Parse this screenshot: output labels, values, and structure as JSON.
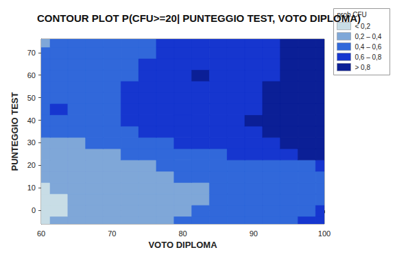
{
  "chart_data": {
    "type": "contour",
    "title": "CONTOUR PLOT P(CFU>=20| PUNTEGGIO TEST, VOTO DIPLOMA)",
    "x_label": "VOTO DIPLOMA",
    "y_label": "PUNTEGGIO TEST",
    "xlim": [
      60,
      100
    ],
    "xticks": [
      60,
      70,
      80,
      90,
      100
    ],
    "ylim": [
      -6,
      76
    ],
    "yticks": [
      0,
      10,
      20,
      30,
      40,
      50,
      60,
      70
    ],
    "grid": false,
    "legend": "right",
    "legend_title": "prob.CFU",
    "color_bins": [
      {
        "label": "< 0,2",
        "max": 0.2,
        "color": "#c8dde6"
      },
      {
        "label": "0,2 – 0,4",
        "min": 0.2,
        "max": 0.4,
        "color": "#7fa7d8"
      },
      {
        "label": "0,4 – 0,6",
        "min": 0.4,
        "max": 0.6,
        "color": "#3168da"
      },
      {
        "label": "0,6 – 0,8",
        "min": 0.6,
        "max": 0.8,
        "color": "#1636cf"
      },
      {
        "label": "> 0,8",
        "min": 0.8,
        "color": "#0b1f96"
      }
    ],
    "x": [
      60,
      62.5,
      65,
      67.5,
      70,
      72.5,
      75,
      77.5,
      80,
      82.5,
      85,
      87.5,
      90,
      92.5,
      95,
      97.5,
      100
    ],
    "y": [
      -5,
      0,
      5,
      10,
      15,
      20,
      25,
      30,
      35,
      40,
      45,
      50,
      55,
      60,
      65,
      70,
      75
    ],
    "z": [
      [
        0.18,
        0.22,
        0.26,
        0.29,
        0.32,
        0.34,
        0.36,
        0.39,
        0.42,
        0.46,
        0.5,
        0.53,
        0.55,
        0.57,
        0.59,
        0.62,
        0.64
      ],
      [
        0.16,
        0.19,
        0.23,
        0.26,
        0.29,
        0.31,
        0.33,
        0.36,
        0.39,
        0.43,
        0.47,
        0.5,
        0.53,
        0.55,
        0.57,
        0.59,
        0.61
      ],
      [
        0.15,
        0.18,
        0.22,
        0.25,
        0.28,
        0.31,
        0.33,
        0.35,
        0.37,
        0.39,
        0.42,
        0.46,
        0.49,
        0.52,
        0.54,
        0.56,
        0.58
      ],
      [
        0.19,
        0.21,
        0.24,
        0.27,
        0.29,
        0.32,
        0.34,
        0.36,
        0.38,
        0.39,
        0.43,
        0.47,
        0.5,
        0.53,
        0.55,
        0.57,
        0.59
      ],
      [
        0.22,
        0.24,
        0.26,
        0.28,
        0.31,
        0.33,
        0.35,
        0.37,
        0.4,
        0.42,
        0.45,
        0.48,
        0.51,
        0.54,
        0.56,
        0.58,
        0.59
      ],
      [
        0.25,
        0.27,
        0.29,
        0.31,
        0.33,
        0.36,
        0.39,
        0.42,
        0.44,
        0.47,
        0.5,
        0.52,
        0.55,
        0.57,
        0.58,
        0.59,
        0.61
      ],
      [
        0.29,
        0.31,
        0.33,
        0.36,
        0.39,
        0.42,
        0.45,
        0.49,
        0.53,
        0.56,
        0.59,
        0.62,
        0.66,
        0.71,
        0.76,
        0.81,
        0.83
      ],
      [
        0.33,
        0.36,
        0.39,
        0.42,
        0.45,
        0.49,
        0.53,
        0.57,
        0.61,
        0.64,
        0.67,
        0.7,
        0.74,
        0.78,
        0.82,
        0.85,
        0.87
      ],
      [
        0.42,
        0.44,
        0.46,
        0.49,
        0.53,
        0.58,
        0.61,
        0.64,
        0.67,
        0.7,
        0.73,
        0.76,
        0.79,
        0.82,
        0.85,
        0.87,
        0.89
      ],
      [
        0.44,
        0.47,
        0.5,
        0.54,
        0.58,
        0.61,
        0.64,
        0.67,
        0.7,
        0.72,
        0.75,
        0.78,
        0.8,
        0.83,
        0.86,
        0.88,
        0.9
      ],
      [
        0.45,
        0.61,
        0.52,
        0.55,
        0.58,
        0.62,
        0.65,
        0.68,
        0.71,
        0.73,
        0.75,
        0.77,
        0.79,
        0.82,
        0.85,
        0.88,
        0.9
      ],
      [
        0.44,
        0.47,
        0.5,
        0.53,
        0.57,
        0.61,
        0.64,
        0.67,
        0.71,
        0.74,
        0.75,
        0.77,
        0.79,
        0.82,
        0.85,
        0.88,
        0.9
      ],
      [
        0.43,
        0.46,
        0.49,
        0.52,
        0.56,
        0.6,
        0.63,
        0.67,
        0.72,
        0.77,
        0.76,
        0.77,
        0.79,
        0.81,
        0.84,
        0.87,
        0.9
      ],
      [
        0.42,
        0.45,
        0.48,
        0.51,
        0.54,
        0.57,
        0.61,
        0.66,
        0.74,
        0.81,
        0.76,
        0.76,
        0.78,
        0.79,
        0.82,
        0.86,
        0.89
      ],
      [
        0.41,
        0.44,
        0.47,
        0.5,
        0.53,
        0.57,
        0.61,
        0.65,
        0.69,
        0.72,
        0.74,
        0.76,
        0.77,
        0.79,
        0.82,
        0.85,
        0.88
      ],
      [
        0.4,
        0.43,
        0.46,
        0.49,
        0.52,
        0.55,
        0.58,
        0.62,
        0.66,
        0.7,
        0.73,
        0.75,
        0.77,
        0.79,
        0.81,
        0.84,
        0.87
      ],
      [
        0.39,
        0.42,
        0.45,
        0.48,
        0.51,
        0.54,
        0.57,
        0.61,
        0.65,
        0.69,
        0.72,
        0.74,
        0.76,
        0.78,
        0.81,
        0.84,
        0.87
      ]
    ]
  }
}
